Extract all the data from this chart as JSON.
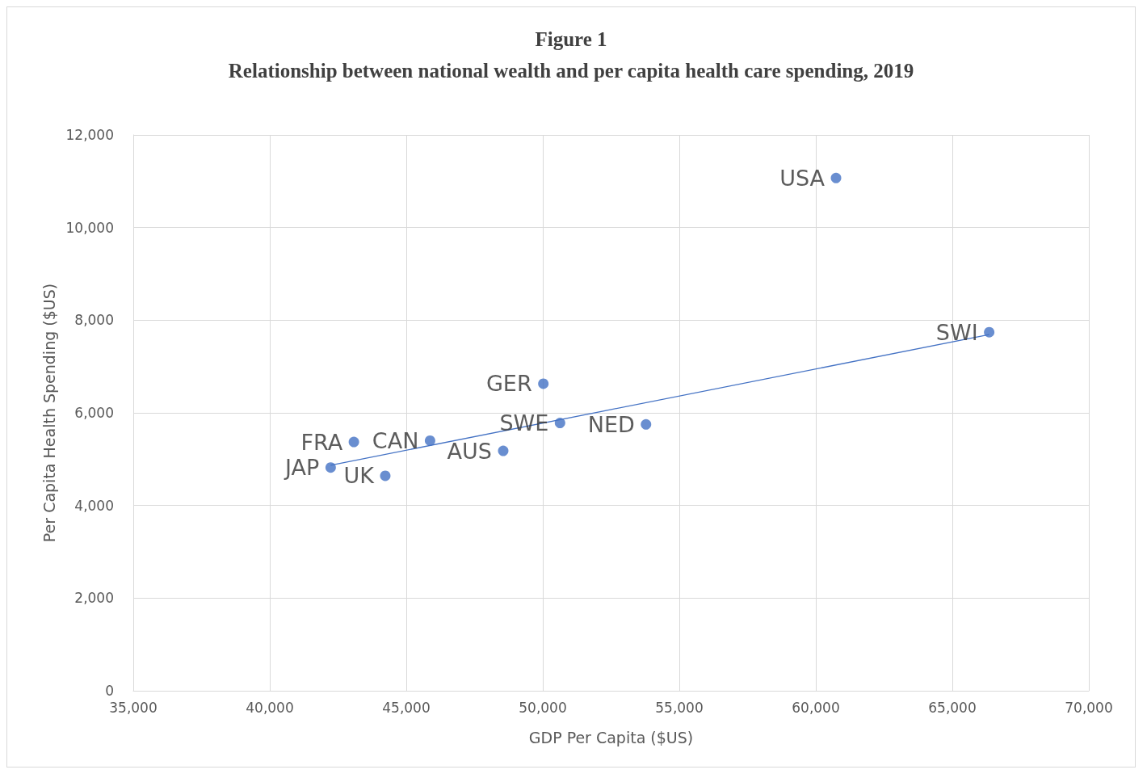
{
  "chart_data": {
    "type": "scatter",
    "title": "Figure 1",
    "subtitle": "Relationship between national wealth and per capita health care spending, 2019",
    "xlabel": "GDP Per Capita ($US)",
    "ylabel": "Per Capita Health Spending ($US)",
    "series": [
      {
        "color": "#4472c4",
        "marker": "circle",
        "x": [
          60740,
          66350,
          50020,
          50630,
          53780,
          48550,
          45870,
          43080,
          42230,
          44230
        ],
        "values": [
          11070,
          7740,
          6630,
          5780,
          5750,
          5180,
          5400,
          5370,
          4820,
          4640
        ]
      },
      {
        "type": "line",
        "marker": "none",
        "color": "#4472c4",
        "x": [
          42230,
          66350
        ],
        "values": [
          4870,
          7690
        ]
      }
    ],
    "annotations": [
      {
        "text": "USA",
        "x": 60740,
        "y": 11070
      },
      {
        "text": "SWI",
        "x": 66350,
        "y": 7740
      },
      {
        "text": "GER",
        "x": 50020,
        "y": 6630
      },
      {
        "text": "SWE",
        "x": 50630,
        "y": 5780
      },
      {
        "text": "NED",
        "x": 53780,
        "y": 5750
      },
      {
        "text": "AUS",
        "x": 48550,
        "y": 5180
      },
      {
        "text": "CAN",
        "x": 45870,
        "y": 5400
      },
      {
        "text": "FRA",
        "x": 43080,
        "y": 5370
      },
      {
        "text": "JAP",
        "x": 42230,
        "y": 4820
      },
      {
        "text": "UK",
        "x": 44230,
        "y": 4640
      }
    ],
    "xlim": [
      35000,
      70000
    ],
    "xticks": [
      {
        "value": 35000,
        "label": "35,000"
      },
      {
        "value": 40000,
        "label": "40,000"
      },
      {
        "value": 45000,
        "label": "45,000"
      },
      {
        "value": 50000,
        "label": "50,000"
      },
      {
        "value": 55000,
        "label": "55,000"
      },
      {
        "value": 60000,
        "label": "60,000"
      },
      {
        "value": 65000,
        "label": "65,000"
      },
      {
        "value": 70000,
        "label": "70,000"
      }
    ],
    "ylim": [
      0,
      12000
    ],
    "yticks": [
      0,
      {
        "value": 2000,
        "label": "2,000"
      },
      {
        "value": 4000,
        "label": "4,000"
      },
      {
        "value": 6000,
        "label": "6,000"
      },
      {
        "value": 8000,
        "label": "8,000"
      },
      {
        "value": 10000,
        "label": "10,000"
      },
      {
        "value": 12000,
        "label": "12,000"
      }
    ],
    "grid": true
  }
}
